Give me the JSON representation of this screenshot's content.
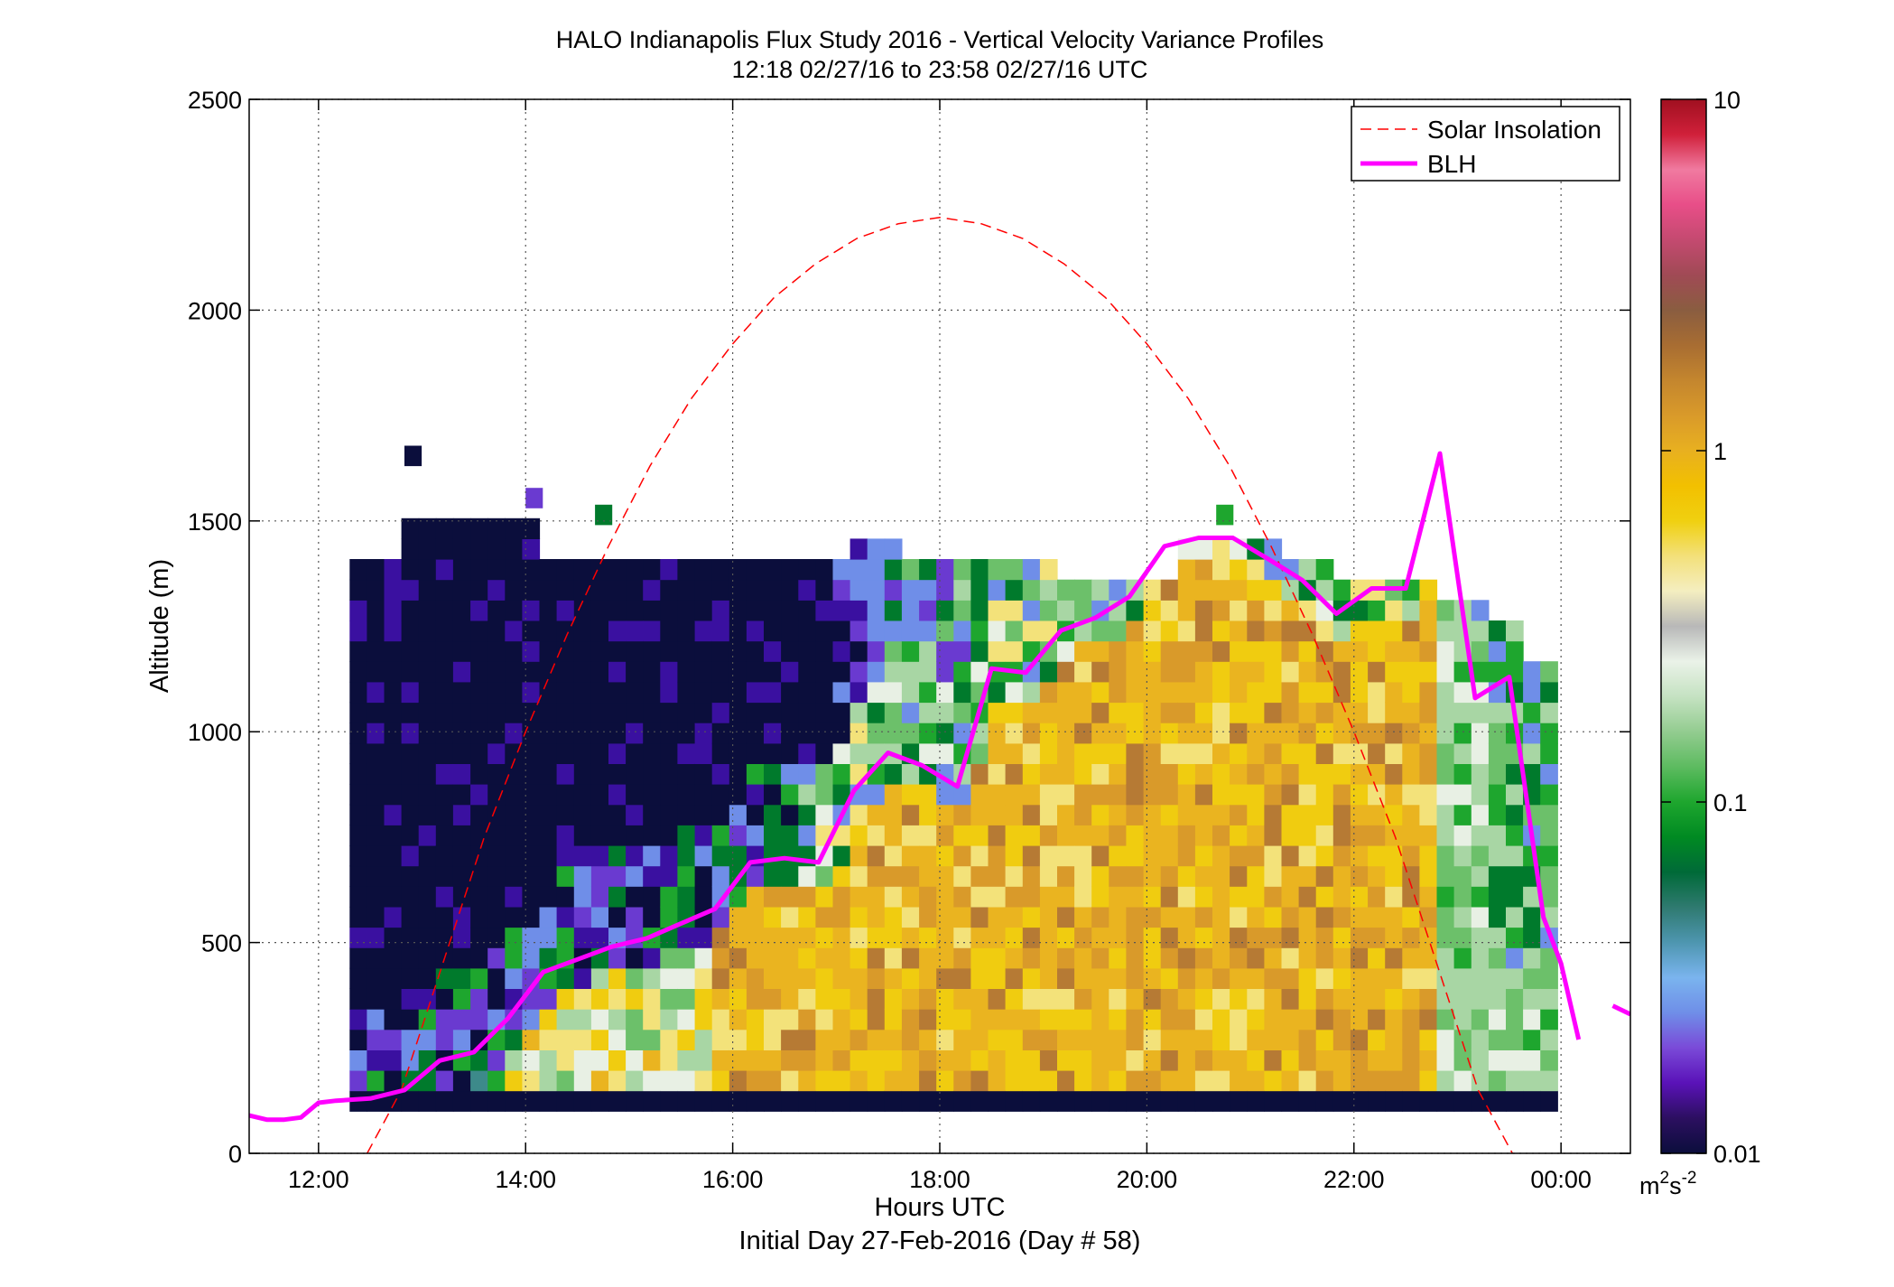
{
  "chart_data": {
    "type": "heatmap",
    "title": "HALO Indianapolis Flux Study 2016 - Vertical Velocity Variance Profiles",
    "subtitle": "12:18 02/27/16 to 23:58 02/27/16  UTC",
    "xlabel": "Hours UTC",
    "xlabel2": "Initial Day 27-Feb-2016 (Day # 58)",
    "ylabel": "Altitude (m)",
    "x_units": "hours UTC",
    "xlim": [
      11.33,
      24.67
    ],
    "ylim": [
      0,
      2500
    ],
    "x_ticks": [
      {
        "value": 12,
        "label": "12:00"
      },
      {
        "value": 14,
        "label": "14:00"
      },
      {
        "value": 16,
        "label": "16:00"
      },
      {
        "value": 18,
        "label": "18:00"
      },
      {
        "value": 20,
        "label": "20:00"
      },
      {
        "value": 22,
        "label": "22:00"
      },
      {
        "value": 24,
        "label": "00:00"
      }
    ],
    "y_ticks": [
      {
        "value": 0,
        "label": "0"
      },
      {
        "value": 500,
        "label": "500"
      },
      {
        "value": 1000,
        "label": "1000"
      },
      {
        "value": 1500,
        "label": "1500"
      },
      {
        "value": 2000,
        "label": "2000"
      },
      {
        "value": 2500,
        "label": "2500"
      }
    ],
    "grid": true,
    "legend_position": "top-right",
    "colorbar": {
      "scale": "log",
      "range": [
        0.01,
        10
      ],
      "ticks": [
        {
          "value": 0.01,
          "label": "0.01"
        },
        {
          "value": 0.1,
          "label": "0.1"
        },
        {
          "value": 1,
          "label": "1"
        },
        {
          "value": 10,
          "label": "10"
        }
      ],
      "units_main": "m",
      "units_sup1": "2",
      "units_mid": "s",
      "units_sup2": "-2",
      "colors": [
        "#0b0e3c",
        "#2c0f60",
        "#5a12b8",
        "#7a4ad8",
        "#6f8ee8",
        "#7ab4ee",
        "#4e96b0",
        "#2f7a70",
        "#006a38",
        "#008a22",
        "#1ea62e",
        "#5dbb60",
        "#93cc90",
        "#c5e2c2",
        "#eaf2e8",
        "#b8b8b8",
        "#f4eec0",
        "#f3e07a",
        "#f0d010",
        "#f2c000",
        "#e8b020",
        "#d99a2a",
        "#c4862e",
        "#a86d32",
        "#8a5d40",
        "#a04a55",
        "#c44a70",
        "#e84e88",
        "#f07aa0",
        "#d0203a",
        "#a01020"
      ]
    },
    "series": [
      {
        "name": "Solar Insolation",
        "style": "dashed",
        "color": "#ff0000",
        "x": [
          12.47,
          12.8,
          13.2,
          13.6,
          14.0,
          14.4,
          14.8,
          15.2,
          15.6,
          16.0,
          16.4,
          16.8,
          17.2,
          17.6,
          18.0,
          18.4,
          18.8,
          19.2,
          19.6,
          20.0,
          20.4,
          20.8,
          21.2,
          21.6,
          22.0,
          22.4,
          22.8,
          23.2,
          23.53
        ],
        "y": [
          0,
          150,
          450,
          750,
          1000,
          1230,
          1440,
          1630,
          1790,
          1920,
          2030,
          2110,
          2170,
          2205,
          2220,
          2205,
          2170,
          2110,
          2030,
          1920,
          1790,
          1630,
          1440,
          1230,
          1000,
          750,
          450,
          150,
          0
        ]
      },
      {
        "name": "BLH",
        "style": "solid",
        "color": "#ff00ff",
        "segments": [
          {
            "x": [
              11.33,
              11.5,
              11.67,
              11.83,
              12.0,
              12.17,
              12.5,
              12.83,
              13.17,
              13.5,
              13.83,
              14.17,
              14.5,
              14.83,
              15.17,
              15.5,
              15.83,
              16.17,
              16.5,
              16.83,
              17.17,
              17.5,
              17.83,
              18.17,
              18.5,
              18.83,
              19.17,
              19.5,
              19.83,
              20.17,
              20.5,
              20.83,
              21.17,
              21.5,
              21.83,
              22.17,
              22.5,
              22.83,
              23.17,
              23.5,
              23.83,
              24.0,
              24.17
            ],
            "y": [
              90,
              80,
              80,
              85,
              120,
              125,
              130,
              150,
              220,
              240,
              320,
              430,
              460,
              490,
              510,
              545,
              580,
              690,
              700,
              690,
              860,
              950,
              920,
              870,
              1150,
              1140,
              1240,
              1270,
              1320,
              1440,
              1460,
              1460,
              1410,
              1360,
              1280,
              1340,
              1340,
              1660,
              1080,
              1130,
              560,
              450,
              270
            ]
          },
          {
            "x": [
              24.5,
              24.67
            ],
            "y": [
              350,
              330
            ]
          }
        ]
      }
    ]
  }
}
